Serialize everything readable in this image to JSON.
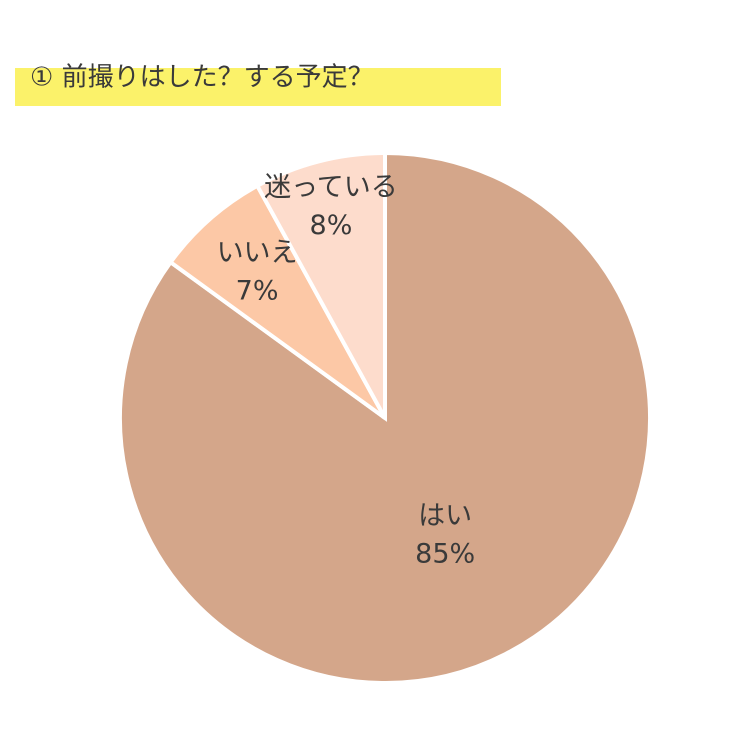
{
  "chart_data": {
    "type": "pie",
    "title": "① 前撮りはした？する予定？",
    "categories": [
      "はい",
      "いいえ",
      "迷っている"
    ],
    "values": [
      85,
      7,
      8
    ],
    "value_labels": [
      "85%",
      "7%",
      "8%"
    ],
    "colors": [
      "#d4a68a",
      "#fcc8a6",
      "#fddccc"
    ]
  }
}
